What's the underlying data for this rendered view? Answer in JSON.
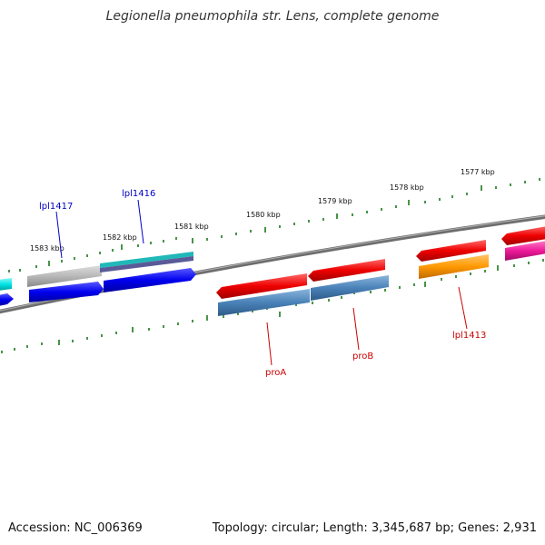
{
  "title": "Legionella pneumophila str. Lens, complete genome",
  "footer": {
    "accession": "Accession: NC_006369",
    "topology": "Topology: circular; Length: 3,345,687 bp; Genes: 2,931"
  },
  "scale_labels": [
    "1577 kbp",
    "1578 kbp",
    "1579 kbp",
    "1580 kbp",
    "1581 kbp",
    "1582 kbp",
    "1583 kbp"
  ],
  "gene_labels": [
    {
      "name": "lpl1417",
      "color": "#0000c8"
    },
    {
      "name": "lpl1416",
      "color": "#0000c8"
    },
    {
      "name": "proA",
      "color": "#cc0000"
    },
    {
      "name": "proB",
      "color": "#cc0000"
    },
    {
      "name": "lpl1413",
      "color": "#cc0000"
    }
  ],
  "colors": {
    "backbone": "#7a7a7a",
    "tick": "#1a7a1a",
    "feature_red": "#ee0000",
    "feature_blue": "#0000ee",
    "feature_steelblue": "#4a82b8",
    "feature_orange": "#ff9900",
    "feature_gray": "#b8b8b8",
    "feature_cyan": "#00e5e5",
    "feature_teal": "#20b0b0",
    "feature_slate": "#6060a0",
    "feature_magenta": "#ee1a9a"
  }
}
